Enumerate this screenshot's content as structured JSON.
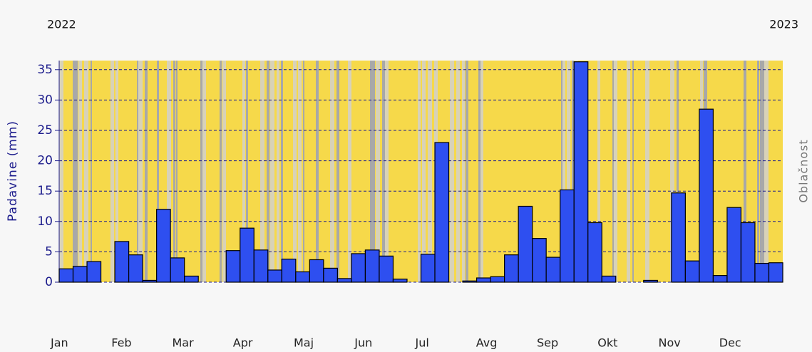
{
  "chart_data": {
    "type": "bar",
    "year_start": "2022",
    "year_end": "2023",
    "y_label": "Padavine (mm)",
    "y2_label": "Oblačnost",
    "month_labels": [
      "Jan",
      "Feb",
      "Mar",
      "Apr",
      "Maj",
      "Jun",
      "Jul",
      "Avg",
      "Sep",
      "Okt",
      "Nov",
      "Dec"
    ],
    "categories": [
      null,
      null,
      null,
      null,
      null,
      null,
      null,
      null,
      null,
      null,
      null,
      null,
      null,
      null,
      null,
      null,
      null,
      null,
      null,
      null,
      null,
      null,
      null,
      null,
      null,
      null,
      null,
      null,
      null,
      null,
      null,
      null,
      null,
      null,
      null,
      null,
      null,
      null,
      null,
      null,
      null,
      null,
      null,
      null,
      null,
      null,
      null,
      null,
      null,
      null,
      null,
      null
    ],
    "values": [
      2.2,
      2.6,
      3.4,
      0,
      6.7,
      4.5,
      0.3,
      12,
      4,
      1,
      0,
      0,
      5.2,
      8.9,
      5.3,
      2,
      3.8,
      1.7,
      3.7,
      2.3,
      0.6,
      4.7,
      5.3,
      4.3,
      0.5,
      0,
      4.6,
      23,
      0,
      0.2,
      0.7,
      0.9,
      4.5,
      12.5,
      7.2,
      4.1,
      15.2,
      36.3,
      9.8,
      1,
      0,
      0,
      0.3,
      0,
      14.7,
      3.5,
      28.5,
      1.1,
      12.3,
      9.8,
      3.1,
      3.2
    ],
    "color": "#2e4ff0",
    "ylim": [
      0,
      36.5
    ],
    "yticks": [
      0,
      5,
      10,
      15,
      20,
      25,
      30,
      35
    ],
    "grid": true
  }
}
